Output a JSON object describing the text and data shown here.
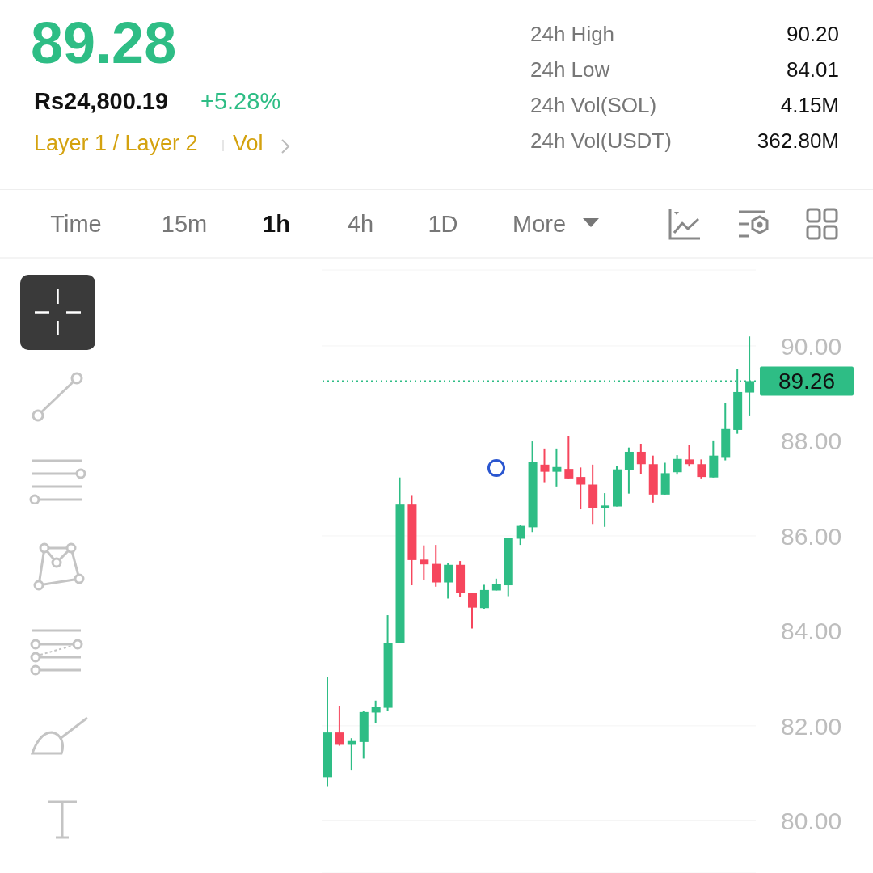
{
  "chart_data": {
    "type": "candlestick",
    "title": "89.28",
    "annotations": [
      "Rs24,800.19",
      "+5.28%",
      "Layer 1 / Layer 2",
      "Vol",
      "24h High",
      "90.20",
      "24h Low",
      "84.01",
      "24h Vol(SOL)",
      "4.15M",
      "24h Vol(USDT)",
      "362.80M",
      "Time",
      "15m",
      "1h",
      "4h",
      "1D",
      "More"
    ],
    "categories": [
      null,
      null,
      null,
      null,
      null,
      null,
      null,
      null,
      null,
      null,
      null,
      null,
      null,
      null,
      null,
      null,
      null,
      null,
      null,
      null,
      null,
      null,
      null,
      null,
      null,
      null,
      null,
      null,
      null,
      null,
      null,
      null,
      null,
      null,
      null,
      null
    ],
    "ohlc": [
      [
        80.92,
        83.02,
        80.73,
        81.86
      ],
      [
        81.86,
        82.42,
        81.58,
        81.6
      ],
      [
        81.6,
        81.74,
        81.06,
        81.68
      ],
      [
        81.66,
        82.31,
        81.31,
        82.29
      ],
      [
        82.28,
        82.53,
        82.05,
        82.39
      ],
      [
        82.38,
        84.33,
        82.32,
        83.75
      ],
      [
        83.74,
        87.23,
        83.74,
        86.66
      ],
      [
        86.66,
        86.86,
        84.96,
        85.49
      ],
      [
        85.5,
        85.8,
        85.08,
        85.4
      ],
      [
        85.41,
        85.81,
        84.93,
        85.02
      ],
      [
        85.02,
        85.43,
        84.68,
        85.39
      ],
      [
        85.39,
        85.47,
        84.71,
        84.8
      ],
      [
        84.79,
        84.79,
        84.05,
        84.49
      ],
      [
        84.48,
        84.97,
        84.46,
        84.86
      ],
      [
        84.85,
        85.1,
        84.85,
        84.98
      ],
      [
        84.96,
        85.95,
        84.73,
        85.95
      ],
      [
        85.94,
        86.22,
        85.81,
        86.21
      ],
      [
        86.18,
        87.99,
        86.08,
        87.55
      ],
      [
        87.5,
        87.84,
        87.13,
        87.35
      ],
      [
        87.35,
        87.84,
        87.04,
        87.45
      ],
      [
        87.41,
        88.11,
        87.21,
        87.21
      ],
      [
        87.24,
        87.44,
        86.56,
        87.08
      ],
      [
        87.08,
        87.5,
        86.25,
        86.59
      ],
      [
        86.58,
        86.9,
        86.19,
        86.64
      ],
      [
        86.62,
        87.48,
        86.62,
        87.4
      ],
      [
        87.38,
        87.86,
        86.89,
        87.77
      ],
      [
        87.77,
        87.94,
        87.3,
        87.51
      ],
      [
        87.51,
        87.69,
        86.7,
        86.87
      ],
      [
        86.87,
        87.54,
        86.87,
        87.32
      ],
      [
        87.34,
        87.7,
        87.29,
        87.62
      ],
      [
        87.61,
        87.91,
        87.46,
        87.51
      ],
      [
        87.51,
        87.61,
        87.21,
        87.24
      ],
      [
        87.23,
        88.01,
        87.23,
        87.69
      ],
      [
        87.66,
        88.8,
        87.59,
        88.25
      ],
      [
        88.23,
        89.52,
        88.15,
        89.03
      ],
      [
        89.02,
        90.2,
        88.52,
        89.26
      ]
    ],
    "colors": [
      "#2ebd85",
      "#f6465d",
      "#2ebd85",
      "#2ebd85",
      "#2ebd85",
      "#2ebd85",
      "#2ebd85",
      "#f6465d",
      "#f6465d",
      "#f6465d",
      "#2ebd85",
      "#f6465d",
      "#f6465d",
      "#2ebd85",
      "#2ebd85",
      "#2ebd85",
      "#2ebd85",
      "#2ebd85",
      "#f6465d",
      "#2ebd85",
      "#f6465d",
      "#f6465d",
      "#f6465d",
      "#2ebd85",
      "#2ebd85",
      "#2ebd85",
      "#f6465d",
      "#f6465d",
      "#2ebd85",
      "#2ebd85",
      "#f6465d",
      "#f6465d",
      "#2ebd85",
      "#2ebd85",
      "#2ebd85",
      "#2ebd85"
    ],
    "ylim": [
      78.9,
      91.6
    ],
    "yticks": [
      {
        "value": 80,
        "label": "80.00"
      },
      {
        "value": 82,
        "label": "82.00"
      },
      {
        "value": 84,
        "label": "84.00"
      },
      {
        "value": 86,
        "label": "86.00"
      },
      {
        "value": 88,
        "label": "88.00"
      },
      {
        "value": 90,
        "label": "90.00"
      }
    ],
    "grid": "y",
    "ref_lines": [
      {
        "axis": "y",
        "value": 89.26,
        "label": "89.26",
        "color": "#2ebd85",
        "line_style": "dotted"
      }
    ]
  }
}
